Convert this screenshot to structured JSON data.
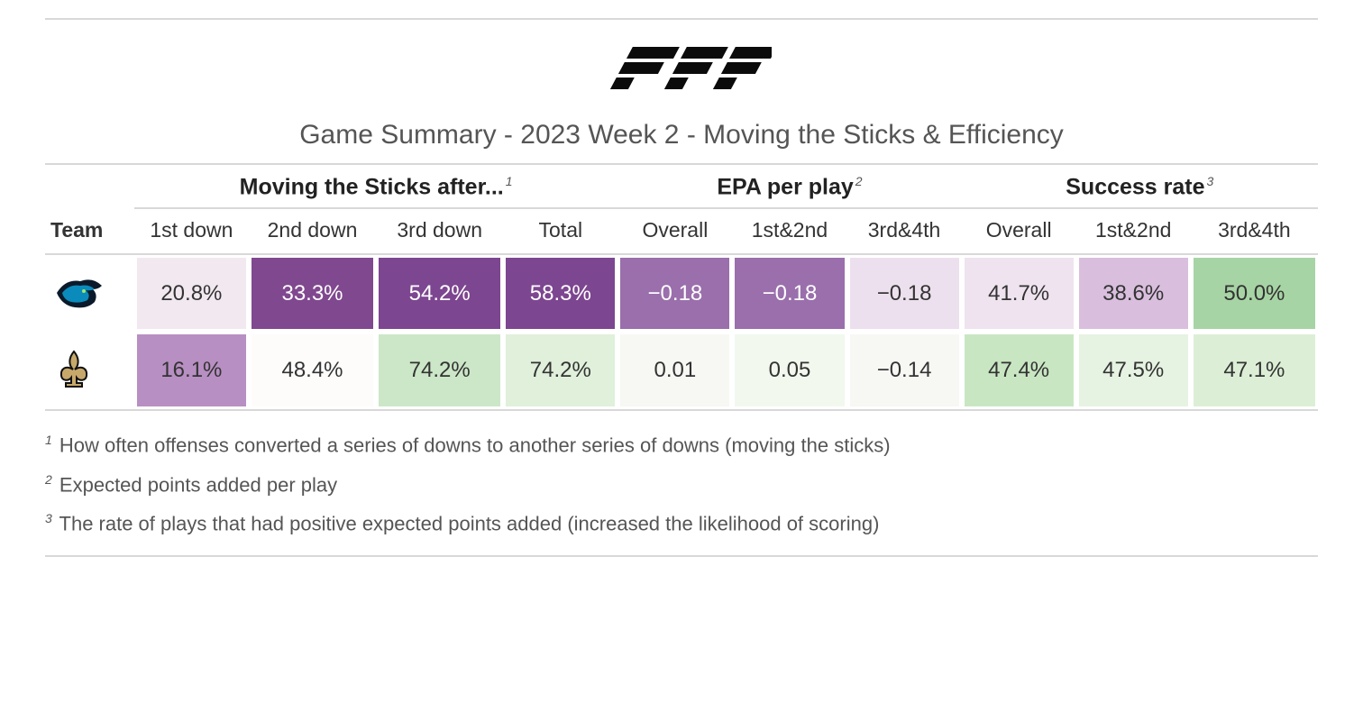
{
  "logo_text": "PFF",
  "title": "Game Summary - 2023 Week 2 - Moving the Sticks & Efficiency",
  "sections": {
    "moving": {
      "label": "Moving the Sticks after...",
      "sup": "1"
    },
    "epa": {
      "label": "EPA per play",
      "sup": "2"
    },
    "success": {
      "label": "Success rate",
      "sup": "3"
    }
  },
  "columns": {
    "team": "Team",
    "m1": "1st down",
    "m2": "2nd down",
    "m3": "3rd down",
    "mt": "Total",
    "e1": "Overall",
    "e2": "1st&2nd",
    "e3": "3rd&4th",
    "s1": "Overall",
    "s2": "1st&2nd",
    "s3": "3rd&4th"
  },
  "rows": [
    {
      "team": "panthers",
      "cells": {
        "m1": {
          "v": "20.8%",
          "bg": "#f2e8f0",
          "fg": "#333333"
        },
        "m2": {
          "v": "33.3%",
          "bg": "#80488f",
          "fg": "#ffffff"
        },
        "m3": {
          "v": "54.2%",
          "bg": "#7d4690",
          "fg": "#ffffff"
        },
        "mt": {
          "v": "58.3%",
          "bg": "#7d4690",
          "fg": "#ffffff"
        },
        "e1": {
          "v": "−0.18",
          "bg": "#9a6fac",
          "fg": "#ffffff"
        },
        "e2": {
          "v": "−0.18",
          "bg": "#9a6fac",
          "fg": "#ffffff"
        },
        "e3": {
          "v": "−0.18",
          "bg": "#ede0ee",
          "fg": "#333333"
        },
        "s1": {
          "v": "41.7%",
          "bg": "#efe3f0",
          "fg": "#333333"
        },
        "s2": {
          "v": "38.6%",
          "bg": "#d9bfdd",
          "fg": "#333333"
        },
        "s3": {
          "v": "50.0%",
          "bg": "#a7d4a4",
          "fg": "#333333"
        }
      }
    },
    {
      "team": "saints",
      "cells": {
        "m1": {
          "v": "16.1%",
          "bg": "#b88fc3",
          "fg": "#333333"
        },
        "m2": {
          "v": "48.4%",
          "bg": "#fdfcfb",
          "fg": "#333333"
        },
        "m3": {
          "v": "74.2%",
          "bg": "#cce7c7",
          "fg": "#333333"
        },
        "mt": {
          "v": "74.2%",
          "bg": "#e0f0db",
          "fg": "#333333"
        },
        "e1": {
          "v": "0.01",
          "bg": "#f7f7f4",
          "fg": "#333333"
        },
        "e2": {
          "v": "0.05",
          "bg": "#f2f8ee",
          "fg": "#333333"
        },
        "e3": {
          "v": "−0.14",
          "bg": "#f7f7f4",
          "fg": "#333333"
        },
        "s1": {
          "v": "47.4%",
          "bg": "#c9e6c3",
          "fg": "#333333"
        },
        "s2": {
          "v": "47.5%",
          "bg": "#e7f3e2",
          "fg": "#333333"
        },
        "s3": {
          "v": "47.1%",
          "bg": "#dcefd6",
          "fg": "#333333"
        }
      }
    }
  ],
  "footnotes": [
    {
      "n": "1",
      "text": "How often offenses converted a series of downs to another series of downs (moving the sticks)"
    },
    {
      "n": "2",
      "text": "Expected points added per play"
    },
    {
      "n": "3",
      "text": "The rate of plays that had positive expected points added (increased the likelihood of scoring)"
    }
  ],
  "team_icons": {
    "panthers": {
      "bg": "#0b1a2a",
      "accent": "#0aa0d6"
    },
    "saints": {
      "bg": "#101010",
      "accent": "#c6a86a"
    }
  },
  "column_widths": {
    "team": "7%",
    "m1": "9%",
    "m2": "10%",
    "m3": "10%",
    "mt": "9%",
    "e1": "9%",
    "e2": "9%",
    "e3": "9%",
    "s1": "9%",
    "s2": "9%",
    "s3": "10%"
  }
}
